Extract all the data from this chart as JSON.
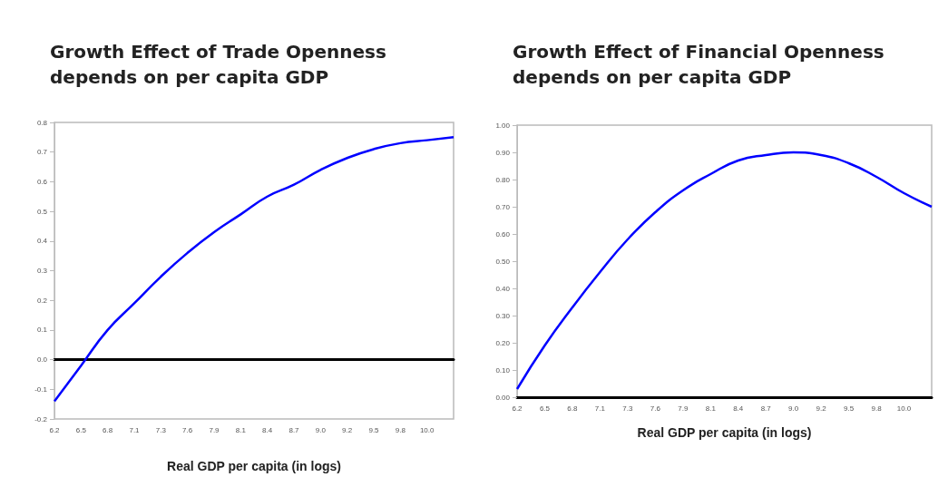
{
  "chart_data": [
    {
      "type": "line",
      "title": "Growth Effect of Trade Openness\ndepends on per capita GDP",
      "xlabel": "Real GDP per capita (in logs)",
      "categories": [
        "6.2",
        "6.5",
        "6.8",
        "7.1",
        "7.3",
        "7.6",
        "7.9",
        "8.1",
        "8.4",
        "8.7",
        "9.0",
        "9.2",
        "9.5",
        "9.8",
        "10.0",
        null
      ],
      "series": [
        {
          "color": "#0000ff",
          "values": [
            -0.14,
            -0.02,
            0.1,
            0.19,
            0.28,
            0.36,
            0.43,
            0.49,
            0.55,
            0.59,
            0.64,
            0.68,
            0.71,
            0.73,
            0.74,
            0.75
          ]
        }
      ],
      "ylim": [
        -0.2,
        0.8
      ],
      "yticks": [
        -0.2,
        -0.1,
        {
          "value": 0,
          "label": "0.0"
        },
        0.1,
        0.2,
        0.3,
        0.4,
        0.5,
        0.6,
        0.7,
        0.8
      ],
      "marker": "none",
      "line_style": "solid"
    },
    {
      "type": "line",
      "title": "Growth Effect of Financial Openness\ndepends on per capita GDP",
      "xlabel": "Real GDP per capita (in logs)",
      "categories": [
        "6.2",
        "6.5",
        "6.8",
        "7.1",
        "7.3",
        "7.6",
        "7.9",
        "8.1",
        "8.4",
        "8.7",
        "9.0",
        "9.2",
        "9.5",
        "9.8",
        "10.0",
        null
      ],
      "series": [
        {
          "color": "#0000ff",
          "values": [
            0.03,
            0.19,
            0.33,
            0.46,
            0.58,
            0.68,
            0.76,
            0.82,
            0.87,
            0.89,
            0.9,
            0.89,
            0.86,
            0.81,
            0.75,
            0.7
          ]
        }
      ],
      "ylim": [
        0,
        1
      ],
      "yticks": [
        {
          "value": 0,
          "label": "0.00"
        },
        {
          "value": 0.1,
          "label": "0.10"
        },
        {
          "value": 0.2,
          "label": "0.20"
        },
        {
          "value": 0.3,
          "label": "0.30"
        },
        {
          "value": 0.4,
          "label": "0.40"
        },
        {
          "value": 0.5,
          "label": "0.50"
        },
        {
          "value": 0.6,
          "label": "0.60"
        },
        {
          "value": 0.7,
          "label": "0.70"
        },
        {
          "value": 0.8,
          "label": "0.80"
        },
        {
          "value": 0.9,
          "label": "0.90"
        },
        {
          "value": 1,
          "label": "1.00"
        }
      ],
      "grid": false,
      "marker": "none",
      "line_style": "solid"
    }
  ]
}
